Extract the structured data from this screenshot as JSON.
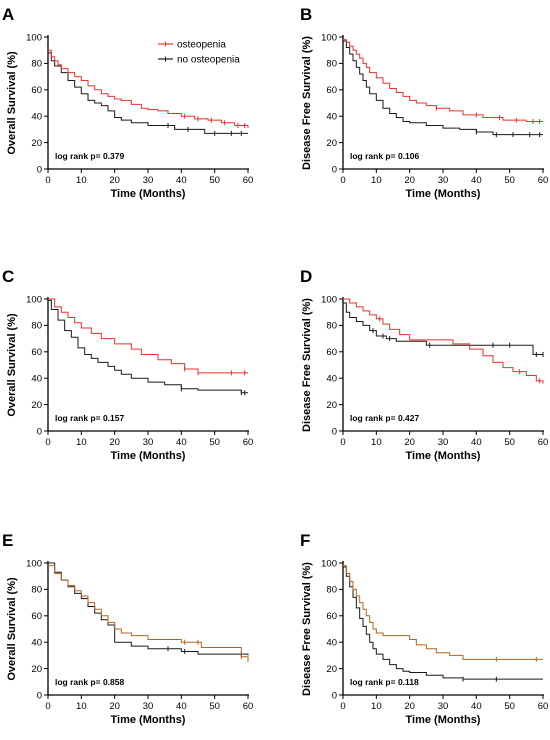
{
  "legend": {
    "entries": [
      {
        "label": "osteopenia",
        "color": "#e8312f"
      },
      {
        "label": "no osteopenia",
        "color": "#1a1a1a"
      }
    ]
  },
  "chart_data": [
    {
      "id": "A",
      "type": "line",
      "step": true,
      "xlabel": "Time (Months)",
      "ylabel": "Overall Survival (%)",
      "xlim": [
        0,
        60
      ],
      "ylim": [
        0,
        100
      ],
      "xticks": [
        0,
        10,
        20,
        30,
        40,
        50,
        60
      ],
      "yticks": [
        0,
        20,
        40,
        60,
        80,
        100
      ],
      "annotation": "log rank p= 0.379",
      "series": [
        {
          "name": "osteopenia",
          "color": "#e8312f",
          "x": [
            0,
            1,
            2,
            3,
            4,
            6,
            8,
            10,
            12,
            14,
            16,
            18,
            20,
            22,
            25,
            28,
            30,
            33,
            36,
            40,
            44,
            48,
            52,
            56,
            60
          ],
          "y": [
            90,
            85,
            82,
            79,
            76,
            73,
            70,
            67,
            63,
            60,
            57,
            55,
            53,
            52,
            49,
            46,
            45,
            44,
            42,
            40,
            38,
            37,
            35,
            33,
            31
          ],
          "censor_x": [
            41,
            45,
            49,
            53,
            57,
            59
          ]
        },
        {
          "name": "no osteopenia",
          "color": "#1a1a1a",
          "x": [
            0,
            1,
            2,
            4,
            6,
            8,
            10,
            12,
            14,
            16,
            18,
            20,
            22,
            25,
            30,
            38,
            47,
            60
          ],
          "y": [
            88,
            82,
            78,
            73,
            67,
            62,
            57,
            52,
            50,
            48,
            44,
            39,
            37,
            35,
            33,
            30,
            27,
            27
          ],
          "censor_x": [
            36,
            42,
            50,
            55,
            58
          ]
        }
      ]
    },
    {
      "id": "B",
      "type": "line",
      "step": true,
      "xlabel": "Time (Months)",
      "ylabel": "Disease Free Survival (%)",
      "xlim": [
        0,
        60
      ],
      "ylim": [
        0,
        100
      ],
      "xticks": [
        0,
        10,
        20,
        30,
        40,
        50,
        60
      ],
      "yticks": [
        0,
        20,
        40,
        60,
        80,
        100
      ],
      "annotation": "log rank p= 0.106",
      "series": [
        {
          "name": "osteopenia",
          "color": "#e8312f",
          "x": [
            0,
            1,
            2,
            3,
            4,
            5,
            6,
            7,
            8,
            10,
            12,
            14,
            16,
            18,
            20,
            22,
            25,
            28,
            32,
            36,
            42,
            48,
            55,
            60
          ],
          "y": [
            98,
            96,
            93,
            90,
            87,
            84,
            80,
            77,
            73,
            69,
            65,
            61,
            58,
            55,
            52,
            50,
            48,
            46,
            44,
            41,
            39,
            37,
            36,
            36
          ],
          "censor_x": [
            28,
            40,
            47,
            52,
            57,
            59
          ]
        },
        {
          "name": "no osteopenia",
          "color": "#1a1a1a",
          "x": [
            0,
            1,
            2,
            3,
            4,
            5,
            6,
            7,
            8,
            10,
            12,
            14,
            16,
            18,
            20,
            25,
            30,
            35,
            40,
            45,
            60
          ],
          "y": [
            97,
            92,
            87,
            82,
            77,
            72,
            67,
            62,
            57,
            52,
            46,
            42,
            39,
            36,
            35,
            33,
            31,
            30,
            28,
            26,
            26
          ],
          "censor_x": [
            40,
            46,
            51,
            56,
            59
          ]
        }
      ]
    },
    {
      "id": "C",
      "type": "line",
      "step": true,
      "xlabel": "Time (Months)",
      "ylabel": "Overall Survival (%)",
      "xlim": [
        0,
        60
      ],
      "ylim": [
        0,
        100
      ],
      "xticks": [
        0,
        10,
        20,
        30,
        40,
        50,
        60
      ],
      "yticks": [
        0,
        20,
        40,
        60,
        80,
        100
      ],
      "annotation": "log rank p= 0.157",
      "series": [
        {
          "name": "osteopenia",
          "color": "#e8312f",
          "x": [
            0,
            2,
            4,
            6,
            8,
            10,
            13,
            16,
            20,
            25,
            28,
            33,
            37,
            41,
            45,
            60
          ],
          "y": [
            100,
            94,
            90,
            86,
            82,
            78,
            74,
            70,
            66,
            62,
            58,
            54,
            51,
            47,
            44,
            44
          ],
          "censor_x": [
            41,
            45,
            55,
            59
          ]
        },
        {
          "name": "no osteopenia",
          "color": "#1a1a1a",
          "x": [
            0,
            1,
            3,
            5,
            7,
            9,
            11,
            13,
            15,
            18,
            20,
            22,
            25,
            30,
            35,
            40,
            45,
            58,
            60
          ],
          "y": [
            99,
            92,
            84,
            76,
            71,
            63,
            58,
            55,
            52,
            49,
            46,
            43,
            40,
            37,
            35,
            32,
            31,
            29,
            29
          ],
          "censor_x": [
            40,
            58,
            59
          ]
        }
      ]
    },
    {
      "id": "D",
      "type": "line",
      "step": true,
      "xlabel": "Time (Months)",
      "ylabel": "Disease Free Survival (%)",
      "xlim": [
        0,
        60
      ],
      "ylim": [
        0,
        100
      ],
      "xticks": [
        0,
        10,
        20,
        30,
        40,
        50,
        60
      ],
      "yticks": [
        0,
        20,
        40,
        60,
        80,
        100
      ],
      "annotation": "log rank p= 0.427",
      "series": [
        {
          "name": "osteopenia",
          "color": "#e8312f",
          "x": [
            0,
            2,
            4,
            6,
            8,
            10,
            12,
            14,
            17,
            20,
            33,
            38,
            42,
            45,
            48,
            51,
            55,
            58,
            60
          ],
          "y": [
            100,
            97,
            94,
            91,
            88,
            85,
            81,
            77,
            73,
            69,
            66,
            62,
            57,
            52,
            48,
            45,
            42,
            38,
            36
          ],
          "censor_x": [
            11,
            53,
            59
          ]
        },
        {
          "name": "no osteopenia",
          "color": "#1a1a1a",
          "x": [
            0,
            1,
            2,
            4,
            6,
            8,
            10,
            13,
            16,
            20,
            25,
            57,
            60
          ],
          "y": [
            97,
            90,
            86,
            83,
            80,
            76,
            72,
            70,
            68,
            68,
            65,
            58,
            58
          ],
          "censor_x": [
            9,
            12,
            14,
            26,
            45,
            50,
            58,
            60
          ]
        }
      ]
    },
    {
      "id": "E",
      "type": "line",
      "step": true,
      "xlabel": "Time (Months)",
      "ylabel": "Overall Survival (%)",
      "xlim": [
        0,
        60
      ],
      "ylim": [
        0,
        100
      ],
      "xticks": [
        0,
        10,
        20,
        30,
        40,
        50,
        60
      ],
      "yticks": [
        0,
        20,
        40,
        60,
        80,
        100
      ],
      "annotation": "log rank p= 0.858",
      "series": [
        {
          "name": "osteopenia",
          "color": "#b5651d",
          "x": [
            0,
            2,
            4,
            6,
            8,
            10,
            12,
            14,
            16,
            18,
            20,
            22,
            25,
            30,
            35,
            40,
            46,
            58,
            60
          ],
          "y": [
            98,
            92,
            87,
            83,
            79,
            75,
            70,
            65,
            60,
            55,
            50,
            47,
            45,
            42,
            42,
            40,
            36,
            29,
            25
          ],
          "censor_x": [
            41,
            45,
            58
          ]
        },
        {
          "name": "no osteopenia",
          "color": "#1a1a1a",
          "x": [
            0,
            2,
            4,
            6,
            8,
            10,
            12,
            14,
            16,
            18,
            20,
            25,
            30,
            35,
            40,
            45,
            60
          ],
          "y": [
            100,
            93,
            87,
            82,
            77,
            73,
            67,
            62,
            57,
            53,
            40,
            37,
            35,
            35,
            33,
            31,
            30
          ],
          "censor_x": [
            36,
            41,
            58
          ]
        }
      ]
    },
    {
      "id": "F",
      "type": "line",
      "step": true,
      "xlabel": "Time (Months)",
      "ylabel": "Disease Free Survival (%)",
      "xlim": [
        0,
        60
      ],
      "ylim": [
        0,
        100
      ],
      "xticks": [
        0,
        10,
        20,
        30,
        40,
        50,
        60
      ],
      "yticks": [
        0,
        20,
        40,
        60,
        80,
        100
      ],
      "annotation": "log rank p= 0.118",
      "series": [
        {
          "name": "osteopenia",
          "color": "#b5651d",
          "x": [
            0,
            1,
            2,
            3,
            4,
            5,
            6,
            7,
            8,
            9,
            10,
            12,
            16,
            20,
            22,
            25,
            28,
            32,
            36,
            60
          ],
          "y": [
            98,
            92,
            86,
            80,
            75,
            70,
            65,
            60,
            55,
            50,
            47,
            45,
            45,
            42,
            38,
            35,
            32,
            30,
            27,
            27
          ],
          "censor_x": [
            46,
            58
          ]
        },
        {
          "name": "no osteopenia",
          "color": "#1a1a1a",
          "x": [
            0,
            1,
            2,
            3,
            4,
            5,
            6,
            7,
            8,
            9,
            10,
            12,
            14,
            16,
            18,
            20,
            25,
            30,
            36,
            60
          ],
          "y": [
            97,
            90,
            82,
            74,
            66,
            58,
            52,
            46,
            40,
            35,
            31,
            27,
            23,
            20,
            18,
            17,
            15,
            13,
            12,
            12
          ],
          "censor_x": [
            36,
            46
          ]
        }
      ]
    }
  ]
}
